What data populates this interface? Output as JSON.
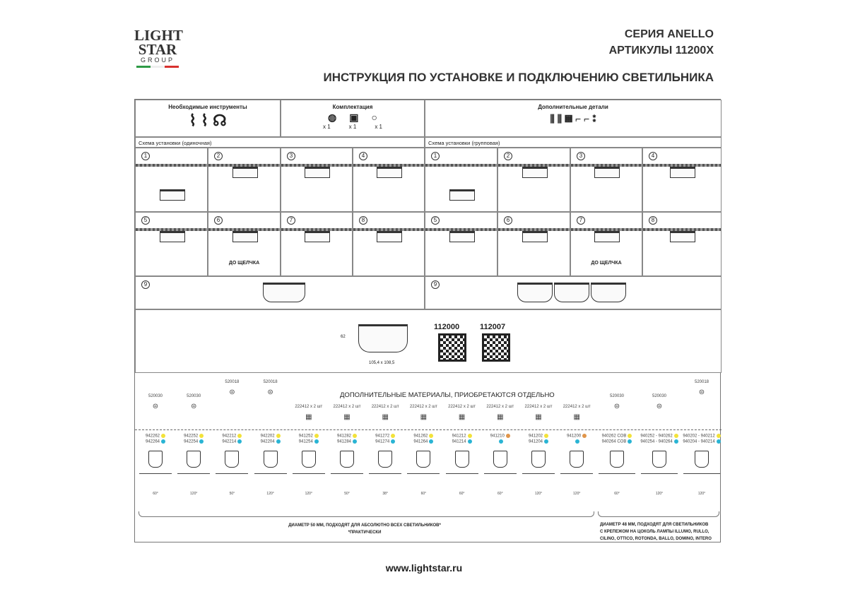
{
  "logo": {
    "line1": "LIGHT",
    "line2": "STAR",
    "line3": "GROUP",
    "flag_colors": [
      "#2e9a46",
      "#ffffff",
      "#d8322f"
    ]
  },
  "header": {
    "series": "СЕРИЯ ANELLO",
    "articles": "АРТИКУЛЫ 11200X",
    "title": "ИНСТРУКЦИЯ ПО УСТАНОВКЕ И ПОДКЛЮЧЕНИЮ СВЕТИЛЬНИКА"
  },
  "top": {
    "tools": "Необходимые инструменты",
    "kit": "Комплектация",
    "kit_qty": [
      "x 1",
      "x 1",
      "x 1"
    ],
    "extras": "Дополнительные детали"
  },
  "single": {
    "label": "Схема установки (одиночная)",
    "steps": [
      "1",
      "2",
      "3",
      "4",
      "5",
      "6",
      "7",
      "8"
    ],
    "click_note": "ДО ЩЕЛЧКА",
    "final": "9"
  },
  "group": {
    "label": "Схема установки (групповая)",
    "steps": [
      "1",
      "2",
      "3",
      "4",
      "5",
      "6",
      "7",
      "8"
    ],
    "click_note": "ДО ЩЕЛЧКА",
    "final": "9"
  },
  "product": {
    "height": "62",
    "size": "105,4 x 108,5",
    "codes": [
      "112000",
      "112007"
    ]
  },
  "materials": {
    "title": "ДОПОЛНИТЕЛЬНЫЕ МАТЕРИАЛЫ, ПРИОБРЕТАЮТСЯ ОТДЕЛЬНО",
    "top": [
      "520030",
      "520030",
      "520018",
      "520018",
      "222412 x 2 шт",
      "222412 x 2 шт",
      "222412 x 2 шт",
      "222412 x 2 шт",
      "222412 x 2 шт",
      "222412 x 2 шт",
      "222412 x 2 шт",
      "222412 x 2 шт",
      "520030",
      "520030",
      "520018"
    ],
    "items": [
      {
        "l1": "942262",
        "l2": "942264",
        "c1": "#f2e23a",
        "c2": "#2ab4d4"
      },
      {
        "l1": "942252",
        "l2": "942254",
        "c1": "#f2e23a",
        "c2": "#2ab4d4"
      },
      {
        "l1": "942212",
        "l2": "942214",
        "c1": "#f2e23a",
        "c2": "#2ab4d4"
      },
      {
        "l1": "942202",
        "l2": "942204",
        "c1": "#f2e23a",
        "c2": "#2ab4d4"
      },
      {
        "l1": "941252",
        "l2": "941254",
        "c1": "#f2e23a",
        "c2": "#2ab4d4"
      },
      {
        "l1": "941282",
        "l2": "941284",
        "c1": "#f2e23a",
        "c2": "#2ab4d4"
      },
      {
        "l1": "941272",
        "l2": "941274",
        "c1": "#f2e23a",
        "c2": "#2ab4d4"
      },
      {
        "l1": "941262",
        "l2": "941264",
        "c1": "#f2e23a",
        "c2": "#2ab4d4"
      },
      {
        "l1": "941212",
        "l2": "941214",
        "c1": "#f2e23a",
        "c2": "#2ab4d4"
      },
      {
        "l1": "941210",
        "l2": "",
        "c1": "#e0954a",
        "c2": "#2ab4d4"
      },
      {
        "l1": "941202",
        "l2": "941204",
        "c1": "#f2e23a",
        "c2": "#2ab4d4"
      },
      {
        "l1": "941200",
        "l2": "",
        "c1": "#e0954a",
        "c2": "#2ab4d4"
      },
      {
        "l1": "940262 COB",
        "l2": "940264 COB",
        "c1": "#f2e23a",
        "c2": "#2ab4d4"
      },
      {
        "l1": "940252 - 940262",
        "l2": "940254 - 940264",
        "c1": "#f2e23a",
        "c2": "#2ab4d4"
      },
      {
        "l1": "940202 - 940212",
        "l2": "940204 - 940214",
        "c1": "#f2e23a",
        "c2": "#2ab4d4"
      }
    ],
    "angles": [
      "60°",
      "120°",
      "50°",
      "120°",
      "120°",
      "50°",
      "38°",
      "60°",
      "60°",
      "60°",
      "120°",
      "120°",
      "60°",
      "120°",
      "120°"
    ],
    "note_50": "ДИАМЕТР 50 ММ, ПОДХОДЯТ ДЛЯ АБСОЛЮТНО ВСЕХ СВЕТИЛЬНИКОВ*",
    "note_50b": "*ПРАКТИЧЕСКИ",
    "note_48a": "ДИАМЕТР 48 ММ, ПОДХОДЯТ ДЛЯ СВЕТИЛЬНИКОВ",
    "note_48b": "С КРЕПЕЖОМ НА ЦОКОЛЬ ЛАМПЫ ILLUMO, RULLO,",
    "note_48c": "CILINO, OTTICO, ROTONDA, BALLO, DOMINO, INTERO"
  },
  "footer": {
    "url": "www.lightstar.ru"
  }
}
